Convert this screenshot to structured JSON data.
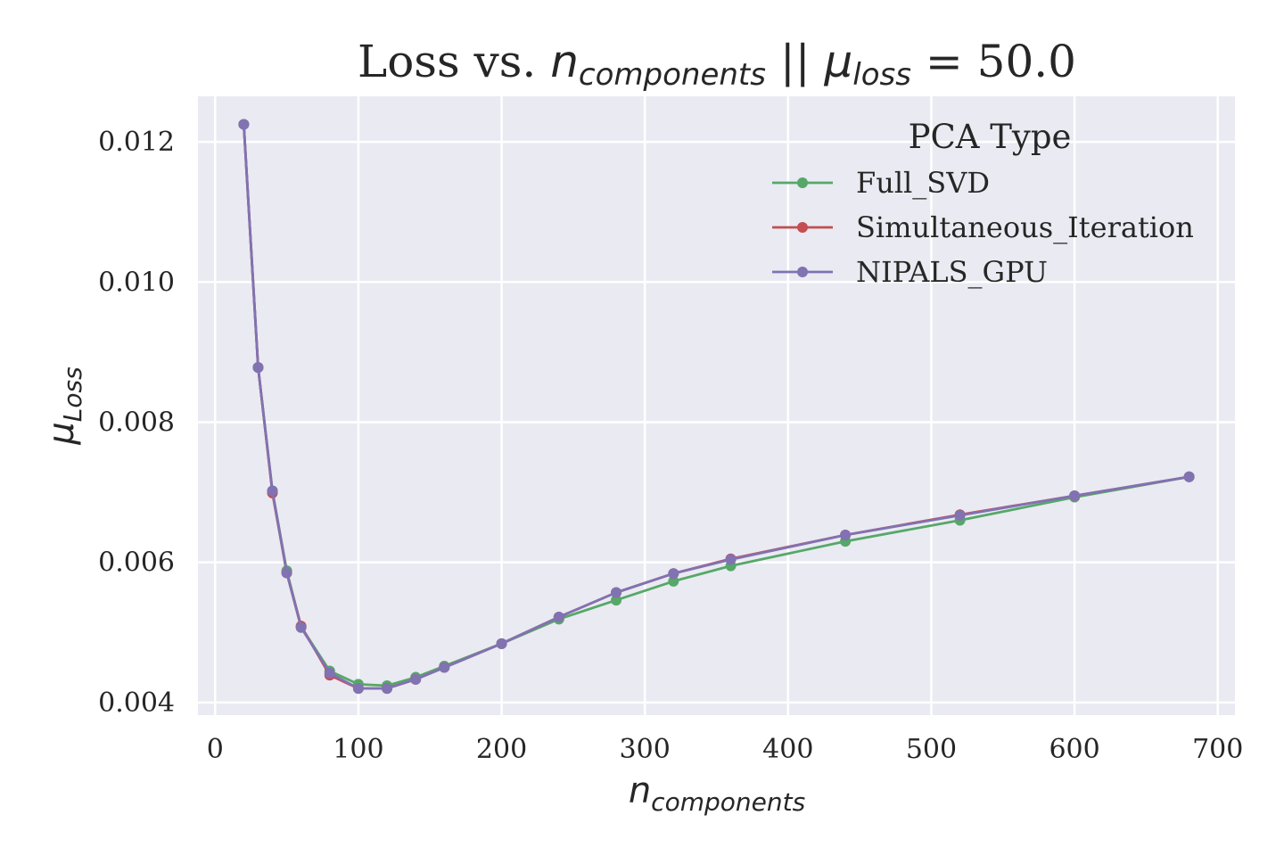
{
  "chart_data": {
    "type": "line",
    "title": {
      "prefix": "Loss vs. ",
      "n": "n",
      "n_sub": "components",
      "separator": " || ",
      "mu": "μ",
      "mu_sub": "loss",
      "equals": " = 50.0"
    },
    "xlabel": {
      "base": "n",
      "sub": "components"
    },
    "ylabel": {
      "base": "μ",
      "sub": "Loss"
    },
    "xlim": [
      -12,
      712
    ],
    "ylim": [
      0.00382,
      0.01265
    ],
    "xticks": [
      0,
      100,
      200,
      300,
      400,
      500,
      600,
      700
    ],
    "xtick_labels": [
      "0",
      "100",
      "200",
      "300",
      "400",
      "500",
      "600",
      "700"
    ],
    "yticks": [
      0.004,
      0.006,
      0.008,
      0.01,
      0.012
    ],
    "ytick_labels": [
      "0.004",
      "0.006",
      "0.008",
      "0.010",
      "0.012"
    ],
    "grid": true,
    "legend": {
      "title": "PCA Type",
      "placement": "top-right"
    },
    "x": [
      20,
      30,
      40,
      50,
      60,
      80,
      100,
      120,
      140,
      160,
      200,
      240,
      280,
      320,
      360,
      440,
      520,
      600,
      680
    ],
    "series": [
      {
        "name": "Full_SVD",
        "color": "#55a868",
        "values": [
          0.01225,
          0.00878,
          0.00702,
          0.00588,
          0.00508,
          0.00445,
          0.00426,
          0.00424,
          0.00436,
          0.00452,
          0.00484,
          0.00519,
          0.00546,
          0.00573,
          0.00595,
          0.0063,
          0.0066,
          0.00693,
          0.00722
        ]
      },
      {
        "name": "Simultaneous_Iteration",
        "color": "#c44e52",
        "values": [
          0.01225,
          0.00878,
          0.00699,
          0.00585,
          0.00509,
          0.00439,
          0.0042,
          0.0042,
          0.00433,
          0.0045,
          0.00484,
          0.00522,
          0.00557,
          0.00584,
          0.00605,
          0.00639,
          0.00668,
          0.00695,
          0.00722
        ]
      },
      {
        "name": "NIPALS_GPU",
        "color": "#8172b2",
        "values": [
          0.01225,
          0.00878,
          0.00702,
          0.00585,
          0.00507,
          0.00442,
          0.0042,
          0.0042,
          0.00433,
          0.0045,
          0.00484,
          0.00522,
          0.00557,
          0.00584,
          0.00604,
          0.00639,
          0.00667,
          0.00695,
          0.00722
        ]
      }
    ]
  }
}
